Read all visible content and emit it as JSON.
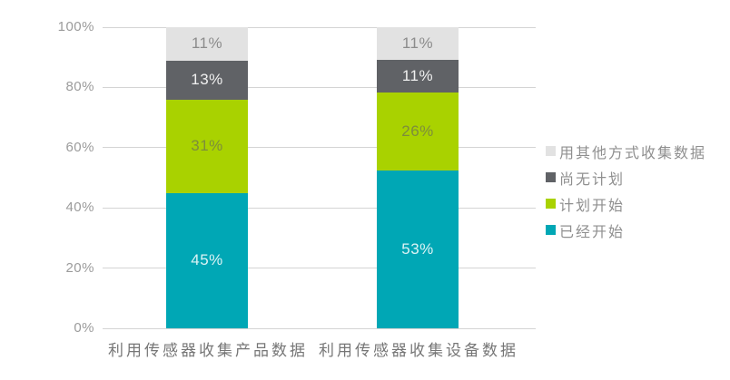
{
  "chart_data": {
    "type": "bar",
    "subtype": "stacked-100-percent",
    "title": "",
    "xlabel": "",
    "ylabel": "",
    "ylim": [
      0,
      100
    ],
    "grid": "horizontal",
    "legend_position": "right",
    "value_suffix": "%",
    "categories": [
      "利用传感器收集产品数据",
      "利用传感器收集设备数据"
    ],
    "y_ticks": [
      {
        "label": "0%",
        "value": 0
      },
      {
        "label": "20%",
        "value": 20
      },
      {
        "label": "40%",
        "value": 40
      },
      {
        "label": "60%",
        "value": 60
      },
      {
        "label": "80%",
        "value": 80
      },
      {
        "label": "100%",
        "value": 100
      }
    ],
    "series": [
      {
        "name": "已经开始",
        "color": "#00a7b5",
        "label_color": "#ddf3f5",
        "values": [
          45,
          53
        ],
        "labels": [
          "45%",
          "53%"
        ]
      },
      {
        "name": "计划开始",
        "color": "#a9d200",
        "label_color": "#7d8d3b",
        "values": [
          31,
          26
        ],
        "labels": [
          "31%",
          "26%"
        ]
      },
      {
        "name": "尚无计划",
        "color": "#606266",
        "label_color": "#f0f0f0",
        "values": [
          13,
          11
        ],
        "labels": [
          "13%",
          "11%"
        ]
      },
      {
        "name": "用其他方式收集数据",
        "color": "#e2e2e2",
        "label_color": "#8c8c8c",
        "values": [
          11,
          11
        ],
        "labels": [
          "11%",
          "11%"
        ]
      }
    ]
  },
  "colors": {
    "background": "#ffffff",
    "gridline": "#d4d4d4",
    "axis_text": "#9b9b9b",
    "category_text": "#767676",
    "legend_text": "#8f8f8f"
  }
}
